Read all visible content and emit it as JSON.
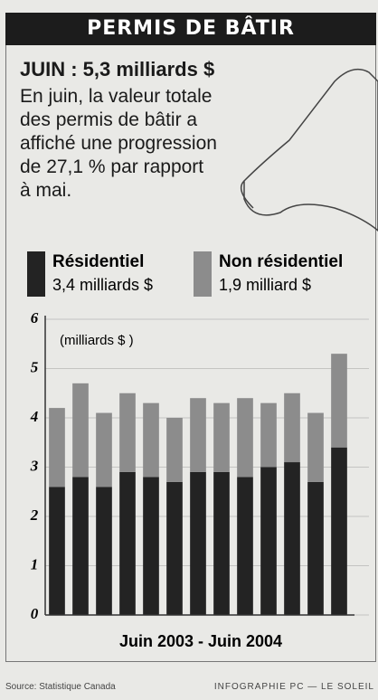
{
  "title": "PERMIS DE BÂTIR",
  "headline": "JUIN : 5,3 milliards $",
  "body_lines": [
    "En juin, la valeur totale",
    "des permis de bâtir a",
    "affiché une progression",
    "de 27,1 % par rapport",
    "à mai."
  ],
  "chart_data": {
    "type": "stacked_bar",
    "annotation": "(milliards $ )",
    "x_label": "Juin 2003 - Juin 2004",
    "categories": [
      null,
      null,
      null,
      null,
      null,
      null,
      null,
      null,
      null,
      null,
      null,
      null,
      null
    ],
    "series": [
      {
        "name": "Résidentiel",
        "amount_label": "3,4 milliards $",
        "color": "#232323",
        "values": [
          2.6,
          2.8,
          2.6,
          2.9,
          2.8,
          2.7,
          2.9,
          2.9,
          2.8,
          3.0,
          3.1,
          2.7,
          3.4
        ]
      },
      {
        "name": "Non résidentiel",
        "amount_label": "1,9 milliard $",
        "color": "#8c8c8c",
        "values": [
          1.6,
          1.9,
          1.5,
          1.6,
          1.5,
          1.3,
          1.5,
          1.4,
          1.6,
          1.3,
          1.4,
          1.4,
          1.9
        ]
      }
    ],
    "ylim": [
      0,
      6
    ],
    "yticks": [
      0,
      1,
      2,
      3,
      4,
      5,
      6
    ],
    "grid": true
  },
  "footer": {
    "source": "Source: Statistique Canada",
    "credit": "INFOGRAPHIE PC — LE SOLEIL"
  }
}
